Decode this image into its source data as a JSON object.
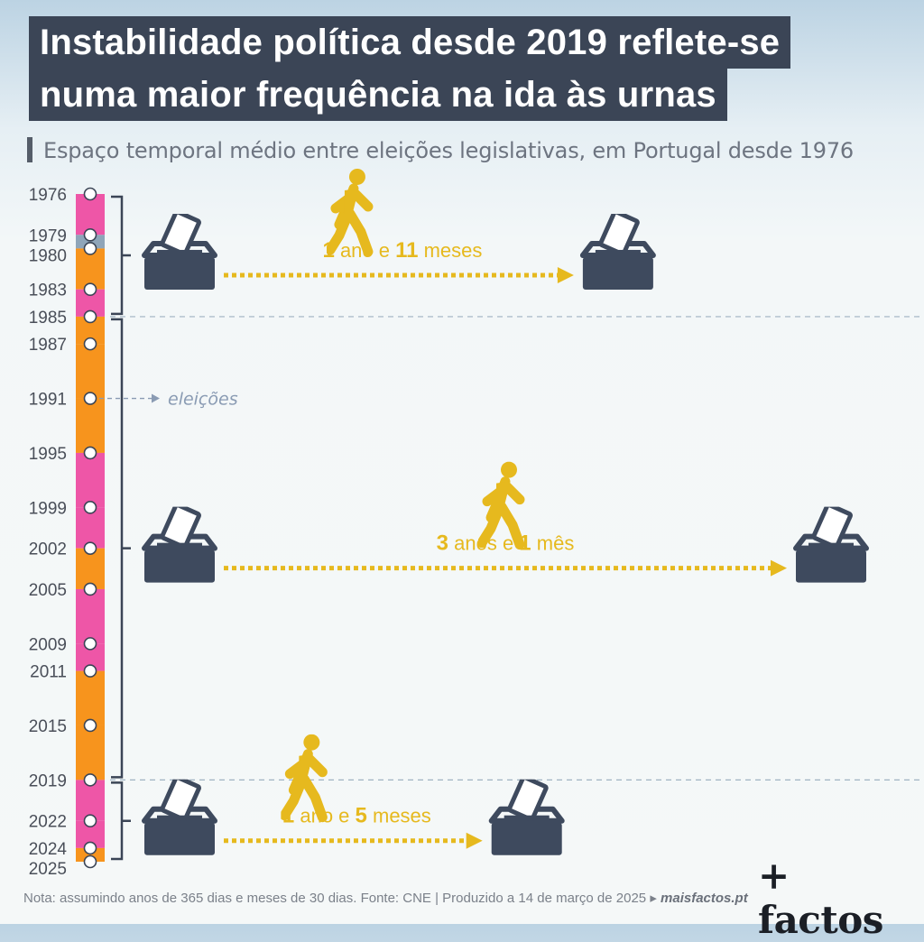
{
  "title": {
    "line1": "Instabilidade política desde 2019 reflete-se",
    "line2": "numa maior frequência na ida às urnas"
  },
  "subtitle": "Espaço temporal médio entre eleições legislativas, em Portugal desde 1976",
  "chart_data": {
    "type": "timeline",
    "elections": [
      1976,
      1979,
      1980,
      1983,
      1985,
      1987,
      1991,
      1995,
      1999,
      2002,
      2005,
      2009,
      2011,
      2015,
      2019,
      2022,
      2024,
      2025
    ],
    "segment_colors": [
      "#ee56a7",
      "#8fa5b9",
      "#f7941d",
      "#ee56a7",
      "#f7941d",
      "#f7941d",
      "#f7941d",
      "#ee56a7",
      "#ee56a7",
      "#f7941d",
      "#ee56a7",
      "#ee56a7",
      "#f7941d",
      "#f7941d",
      "#ee56a7",
      "#ee56a7",
      "#f7941d"
    ],
    "annotation": "eleições",
    "periods": [
      {
        "from": 1976,
        "to": 1985,
        "avg_label_num1": "1",
        "avg_label_unit1": "ano e",
        "avg_label_num2": "11",
        "avg_label_unit2": "meses",
        "avg_months": 23
      },
      {
        "from": 1985,
        "to": 2019,
        "avg_label_num1": "3",
        "avg_label_unit1": "anos e",
        "avg_label_num2": "1",
        "avg_label_unit2": "mês",
        "avg_months": 37
      },
      {
        "from": 2019,
        "to": 2025,
        "avg_label_num1": "1",
        "avg_label_unit1": "ano e",
        "avg_label_num2": "5",
        "avg_label_unit2": "meses",
        "avg_months": 17
      }
    ]
  },
  "colors": {
    "accent": "#e6b91e",
    "box": "#3e4a5e",
    "pink": "#ee56a7",
    "orange": "#f7941d",
    "gray": "#8fa5b9"
  },
  "icons": [
    "ballot-box-icon",
    "walking-person-icon"
  ],
  "footer": {
    "note": "Nota: assumindo anos de 365 dias e meses de 30 dias. Fonte: CNE | Produzido a 14 de março de 2025 ▸ ",
    "brand": "maisfactos.pt"
  },
  "logo": "+ factos"
}
